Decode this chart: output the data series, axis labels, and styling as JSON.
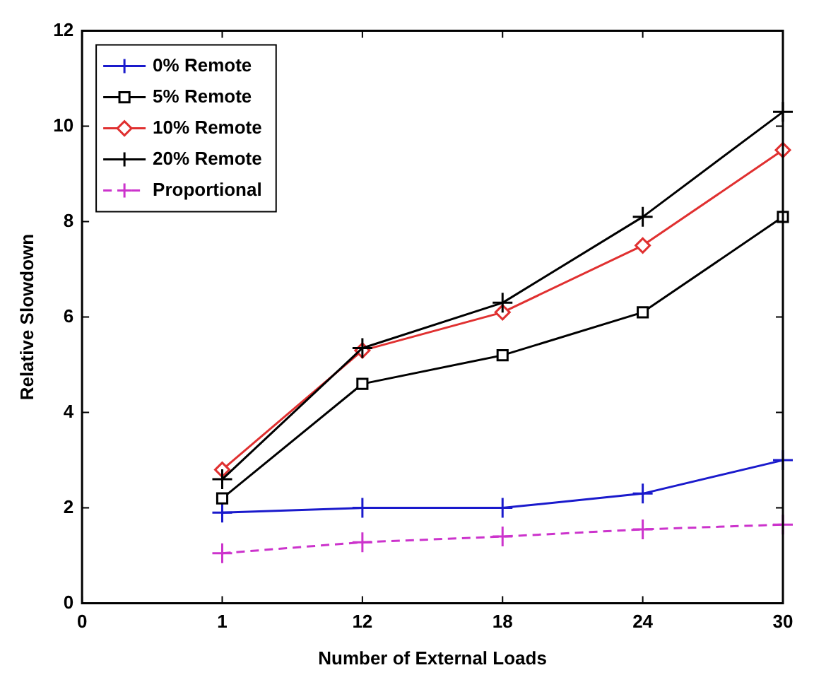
{
  "chart_data": {
    "type": "line",
    "xlabel": "Number of External Loads",
    "ylabel": "Relative Slowdown",
    "categories": [
      "0",
      "1",
      "12",
      "18",
      "24",
      "30"
    ],
    "ylim": [
      0,
      12
    ],
    "yticks": [
      0,
      2,
      4,
      6,
      8,
      10,
      12
    ],
    "grid": false,
    "legend": "top left",
    "series": [
      {
        "name": "0% Remote",
        "color": "#1a1acc",
        "marker": "cross",
        "line_style": "solid",
        "values": [
          null,
          1.9,
          2.0,
          2.0,
          2.3,
          3.0
        ]
      },
      {
        "name": "5% Remote",
        "color": "#000000",
        "marker": "square",
        "line_style": "solid",
        "values": [
          null,
          2.2,
          4.6,
          5.2,
          6.1,
          8.1
        ]
      },
      {
        "name": "10% Remote",
        "color": "#e03030",
        "marker": "diamond",
        "line_style": "solid",
        "values": [
          null,
          2.8,
          5.3,
          6.1,
          7.5,
          9.5
        ]
      },
      {
        "name": "20% Remote",
        "color": "#000000",
        "marker": "cross",
        "line_style": "solid",
        "values": [
          null,
          2.6,
          5.35,
          6.3,
          8.1,
          10.3
        ]
      },
      {
        "name": "Proportional",
        "color": "#cc33cc",
        "marker": "cross",
        "line_style": "dashed",
        "values": [
          null,
          1.05,
          1.28,
          1.4,
          1.55,
          1.65
        ]
      }
    ]
  }
}
